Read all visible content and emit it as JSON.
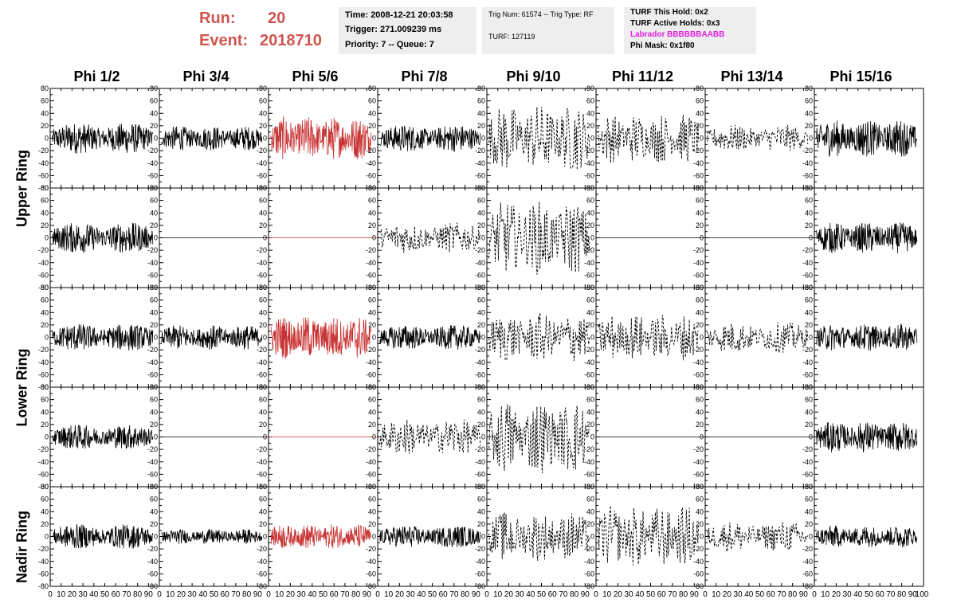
{
  "header": {
    "run_label": "Run:",
    "run_value": "20",
    "event_label": "Event:",
    "event_value": "2018710",
    "run_color": "#d0554f"
  },
  "info_panels": {
    "time": "Time: 2008-12-21 20:03:58",
    "trigger": "Trigger: 271.009239 ms",
    "priority": "Priority: 7 -- Queue: 7",
    "trig_num": "Trig Num: 61574 -- Trig Type: RF",
    "turf": "TURF: 127119",
    "turf_this_hold": "TURF This Hold: 0x2",
    "turf_active_holds": "TURF Active Holds: 0x3",
    "labrador": "Labrador BBBBBBAABB",
    "labrador_color": "#e020e0",
    "phi_mask": "Phi Mask: 0x1f80"
  },
  "ring_labels": [
    "Upper Ring",
    "Lower Ring",
    "Nadir Ring"
  ],
  "chart_data": {
    "type": "line",
    "columns": [
      "Phi 1/2",
      "Phi 3/4",
      "Phi 5/6",
      "Phi 7/8",
      "Phi 9/10",
      "Phi 11/12",
      "Phi 13/14",
      "Phi 15/16"
    ],
    "xlim": [
      0,
      100
    ],
    "ylim": [
      -80,
      80
    ],
    "x_ticks": [
      0,
      10,
      20,
      30,
      40,
      50,
      60,
      70,
      80,
      90
    ],
    "x_tick_labels": [
      "0",
      "10",
      "20",
      "30",
      "40",
      "50",
      "60",
      "70",
      "80",
      "90"
    ],
    "x_last_label": "100",
    "y_ticks": [
      -80,
      -60,
      -40,
      -20,
      0,
      20,
      40,
      60,
      80
    ],
    "y_tick_labels": [
      "-80",
      "-60",
      "-40",
      "-20",
      "0",
      "20",
      "40",
      "60",
      "80"
    ],
    "highlight_column": 2,
    "highlight_color": "#c83232",
    "rows": [
      {
        "amplitudes": [
          25,
          20,
          35,
          22,
          55,
          40,
          22,
          30
        ],
        "styles": [
          "solid",
          "solid",
          "red",
          "solid",
          "dashed",
          "dashed",
          "dashed",
          "solid"
        ]
      },
      {
        "amplitudes": [
          25,
          0,
          0,
          25,
          60,
          0,
          0,
          25
        ],
        "styles": [
          "solid",
          "flat",
          "redflat",
          "dashed",
          "dashed",
          "flat",
          "flat",
          "solid"
        ]
      },
      {
        "amplitudes": [
          22,
          20,
          35,
          20,
          40,
          38,
          25,
          22
        ],
        "styles": [
          "solid",
          "solid",
          "red",
          "solid",
          "dashed",
          "dashed",
          "dashed",
          "solid"
        ]
      },
      {
        "amplitudes": [
          20,
          0,
          0,
          30,
          60,
          0,
          0,
          25
        ],
        "styles": [
          "solid",
          "flat",
          "redflat",
          "dashed",
          "dashed",
          "flat",
          "flat",
          "solid"
        ]
      },
      {
        "amplitudes": [
          20,
          12,
          20,
          18,
          40,
          50,
          25,
          18
        ],
        "styles": [
          "solid",
          "solid",
          "red",
          "solid",
          "dashed",
          "dashed",
          "dashed",
          "solid"
        ]
      }
    ]
  }
}
